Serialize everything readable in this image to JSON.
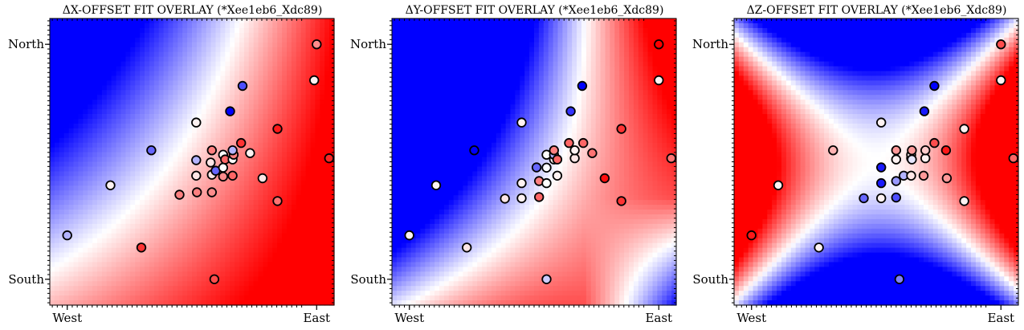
{
  "chart_data": [
    {
      "type": "scatter",
      "title": "ΔX-OFFSET FIT OVERLAY (*Xee1eb6_Xdc89)",
      "x_ticklabels": [
        "West",
        "East"
      ],
      "y_ticklabels": [
        "North",
        "South"
      ],
      "background": "smooth fitted field, blue (top-left) to red (right/bottom-right)",
      "colormap": [
        "#0000ff",
        "#ffffff",
        "#ff0000"
      ],
      "xlim": [
        -0.07,
        1.07
      ],
      "ylim": [
        -0.11,
        1.11
      ],
      "field_terms": {
        "c": 0.15,
        "x": 0.9,
        "y": -0.55,
        "xy": 0.35
      },
      "points": [
        {
          "x": 0.0,
          "y": 0.187,
          "v": -0.3
        },
        {
          "x": 0.173,
          "y": 0.4,
          "v": 0.05
        },
        {
          "x": 0.297,
          "y": 0.135,
          "v": 0.8
        },
        {
          "x": 0.337,
          "y": 0.549,
          "v": -0.6
        },
        {
          "x": 0.45,
          "y": 0.36,
          "v": 0.5
        },
        {
          "x": 0.52,
          "y": 0.37,
          "v": 0.5
        },
        {
          "x": 0.517,
          "y": 0.441,
          "v": 0.1
        },
        {
          "x": 0.517,
          "y": 0.667,
          "v": 0.05
        },
        {
          "x": 0.517,
          "y": 0.507,
          "v": -0.3
        },
        {
          "x": 0.58,
          "y": 0.37,
          "v": 0.45
        },
        {
          "x": 0.58,
          "y": 0.445,
          "v": 0.1
        },
        {
          "x": 0.575,
          "y": 0.497,
          "v": 0.1
        },
        {
          "x": 0.58,
          "y": 0.549,
          "v": 0.5
        },
        {
          "x": 0.59,
          "y": 0.0,
          "v": 0.7
        },
        {
          "x": 0.595,
          "y": 0.462,
          "v": -0.6
        },
        {
          "x": 0.625,
          "y": 0.437,
          "v": 0.45
        },
        {
          "x": 0.625,
          "y": 0.475,
          "v": 0.0
        },
        {
          "x": 0.625,
          "y": 0.53,
          "v": 0.0
        },
        {
          "x": 0.633,
          "y": 0.51,
          "v": 0.6
        },
        {
          "x": 0.653,
          "y": 0.715,
          "v": -1.0
        },
        {
          "x": 0.663,
          "y": 0.441,
          "v": 0.6
        },
        {
          "x": 0.663,
          "y": 0.51,
          "v": 0.0
        },
        {
          "x": 0.667,
          "y": 0.53,
          "v": 0.5
        },
        {
          "x": 0.663,
          "y": 0.549,
          "v": -0.3
        },
        {
          "x": 0.697,
          "y": 0.58,
          "v": 0.8
        },
        {
          "x": 0.703,
          "y": 0.823,
          "v": -0.7
        },
        {
          "x": 0.733,
          "y": 0.537,
          "v": 0.05
        },
        {
          "x": 0.783,
          "y": 0.43,
          "v": 0.1
        },
        {
          "x": 0.843,
          "y": 0.64,
          "v": 0.9
        },
        {
          "x": 0.843,
          "y": 0.333,
          "v": 0.55
        },
        {
          "x": 0.99,
          "y": 0.847,
          "v": 0.05
        },
        {
          "x": 1.0,
          "y": 1.0,
          "v": 0.45
        },
        {
          "x": 1.05,
          "y": 0.515,
          "v": 0.85
        }
      ]
    },
    {
      "type": "scatter",
      "title": "ΔY-OFFSET FIT OVERLAY (*Xee1eb6_Xdc89)",
      "x_ticklabels": [
        "West",
        "East"
      ],
      "y_ticklabels": [
        "North",
        "South"
      ],
      "background": "diagonal field, blue (upper-left) to red (center-right), fading to white/blue at bottom-right",
      "colormap": [
        "#0000ff",
        "#ffffff",
        "#ff0000"
      ],
      "xlim": [
        -0.07,
        1.07
      ],
      "ylim": [
        -0.11,
        1.11
      ],
      "field_terms": {
        "c": -0.3,
        "x": 1.0,
        "y": -0.25,
        "xy": 2.0,
        "xx": -1.6,
        "yy": 0.3
      },
      "points": [
        {
          "x": 0.0,
          "y": 0.187,
          "v": 0.05
        },
        {
          "x": 0.107,
          "y": 0.4,
          "v": 0.05
        },
        {
          "x": 0.23,
          "y": 0.135,
          "v": 0.1
        },
        {
          "x": 0.26,
          "y": 0.549,
          "v": -1.0
        },
        {
          "x": 0.383,
          "y": 0.343,
          "v": 0.1
        },
        {
          "x": 0.45,
          "y": 0.345,
          "v": 0.05
        },
        {
          "x": 0.45,
          "y": 0.409,
          "v": 0.05
        },
        {
          "x": 0.45,
          "y": 0.667,
          "v": 0.05
        },
        {
          "x": 0.51,
          "y": 0.476,
          "v": -0.6
        },
        {
          "x": 0.52,
          "y": 0.418,
          "v": 0.5
        },
        {
          "x": 0.52,
          "y": 0.35,
          "v": 0.6
        },
        {
          "x": 0.55,
          "y": 0.0,
          "v": -0.2
        },
        {
          "x": 0.55,
          "y": 0.409,
          "v": 0.0
        },
        {
          "x": 0.55,
          "y": 0.475,
          "v": 0.0
        },
        {
          "x": 0.55,
          "y": 0.53,
          "v": 0.0
        },
        {
          "x": 0.58,
          "y": 0.51,
          "v": 0.05
        },
        {
          "x": 0.58,
          "y": 0.53,
          "v": -0.3
        },
        {
          "x": 0.58,
          "y": 0.549,
          "v": 0.5
        },
        {
          "x": 0.593,
          "y": 0.51,
          "v": 0.6
        },
        {
          "x": 0.593,
          "y": 0.441,
          "v": 0.05
        },
        {
          "x": 0.64,
          "y": 0.58,
          "v": 0.6
        },
        {
          "x": 0.647,
          "y": 0.715,
          "v": -0.8
        },
        {
          "x": 0.663,
          "y": 0.515,
          "v": 0.1
        },
        {
          "x": 0.663,
          "y": 0.549,
          "v": 0.05
        },
        {
          "x": 0.697,
          "y": 0.58,
          "v": 0.6
        },
        {
          "x": 0.693,
          "y": 0.823,
          "v": -1.0
        },
        {
          "x": 0.733,
          "y": 0.537,
          "v": 0.55
        },
        {
          "x": 0.783,
          "y": 0.43,
          "v": 0.95
        },
        {
          "x": 0.85,
          "y": 0.64,
          "v": 0.8
        },
        {
          "x": 0.85,
          "y": 0.333,
          "v": 0.8
        },
        {
          "x": 1.0,
          "y": 0.847,
          "v": 0.05
        },
        {
          "x": 1.0,
          "y": 1.0,
          "v": 1.0
        },
        {
          "x": 1.05,
          "y": 0.515,
          "v": 0.55
        }
      ]
    },
    {
      "type": "scatter",
      "title": "ΔZ-OFFSET FIT OVERLAY (*Xee1eb6_Xdc89)",
      "x_ticklabels": [
        "West",
        "East"
      ],
      "y_ticklabels": [
        "North",
        "South"
      ],
      "background": "quadrupole field, red at left/right, blue at top/bottom",
      "colormap": [
        "#0000ff",
        "#ffffff",
        "#ff0000"
      ],
      "xlim": [
        -0.07,
        1.07
      ],
      "ylim": [
        -0.11,
        1.11
      ],
      "field_terms": {
        "c": 0.0,
        "xx": 6.5,
        "yy": -6.5,
        "cx": 0.5,
        "cy": 0.5,
        "skew": 1.0
      },
      "points": [
        {
          "x": 0.0,
          "y": 0.187,
          "v": 0.9
        },
        {
          "x": 0.107,
          "y": 0.4,
          "v": 0.05
        },
        {
          "x": 0.27,
          "y": 0.135,
          "v": 0.05
        },
        {
          "x": 0.327,
          "y": 0.549,
          "v": 0.3
        },
        {
          "x": 0.45,
          "y": 0.345,
          "v": -0.6
        },
        {
          "x": 0.52,
          "y": 0.345,
          "v": 0.05
        },
        {
          "x": 0.52,
          "y": 0.409,
          "v": -0.9
        },
        {
          "x": 0.52,
          "y": 0.476,
          "v": -0.9
        },
        {
          "x": 0.52,
          "y": 0.667,
          "v": 0.05
        },
        {
          "x": 0.58,
          "y": 0.348,
          "v": -0.7
        },
        {
          "x": 0.58,
          "y": 0.418,
          "v": -0.4
        },
        {
          "x": 0.58,
          "y": 0.51,
          "v": 0.05
        },
        {
          "x": 0.58,
          "y": 0.549,
          "v": 0.4
        },
        {
          "x": 0.593,
          "y": 0.0,
          "v": -0.5
        },
        {
          "x": 0.61,
          "y": 0.441,
          "v": -0.3
        },
        {
          "x": 0.64,
          "y": 0.515,
          "v": 0.05
        },
        {
          "x": 0.64,
          "y": 0.53,
          "v": 0.05
        },
        {
          "x": 0.64,
          "y": 0.441,
          "v": 0.1
        },
        {
          "x": 0.643,
          "y": 0.51,
          "v": -0.1
        },
        {
          "x": 0.643,
          "y": 0.549,
          "v": 0.4
        },
        {
          "x": 0.69,
          "y": 0.441,
          "v": 0.4
        },
        {
          "x": 0.697,
          "y": 0.515,
          "v": 0.05
        },
        {
          "x": 0.697,
          "y": 0.549,
          "v": 0.2
        },
        {
          "x": 0.693,
          "y": 0.715,
          "v": -0.9
        },
        {
          "x": 0.733,
          "y": 0.58,
          "v": 0.7
        },
        {
          "x": 0.733,
          "y": 0.823,
          "v": -1.0
        },
        {
          "x": 0.78,
          "y": 0.549,
          "v": 0.9
        },
        {
          "x": 0.783,
          "y": 0.43,
          "v": 0.4
        },
        {
          "x": 0.853,
          "y": 0.64,
          "v": 0.05
        },
        {
          "x": 0.853,
          "y": 0.333,
          "v": 0.05
        },
        {
          "x": 1.0,
          "y": 0.847,
          "v": 0.05
        },
        {
          "x": 1.0,
          "y": 1.0,
          "v": 0.7
        },
        {
          "x": 1.05,
          "y": 0.515,
          "v": 0.6
        }
      ]
    }
  ]
}
